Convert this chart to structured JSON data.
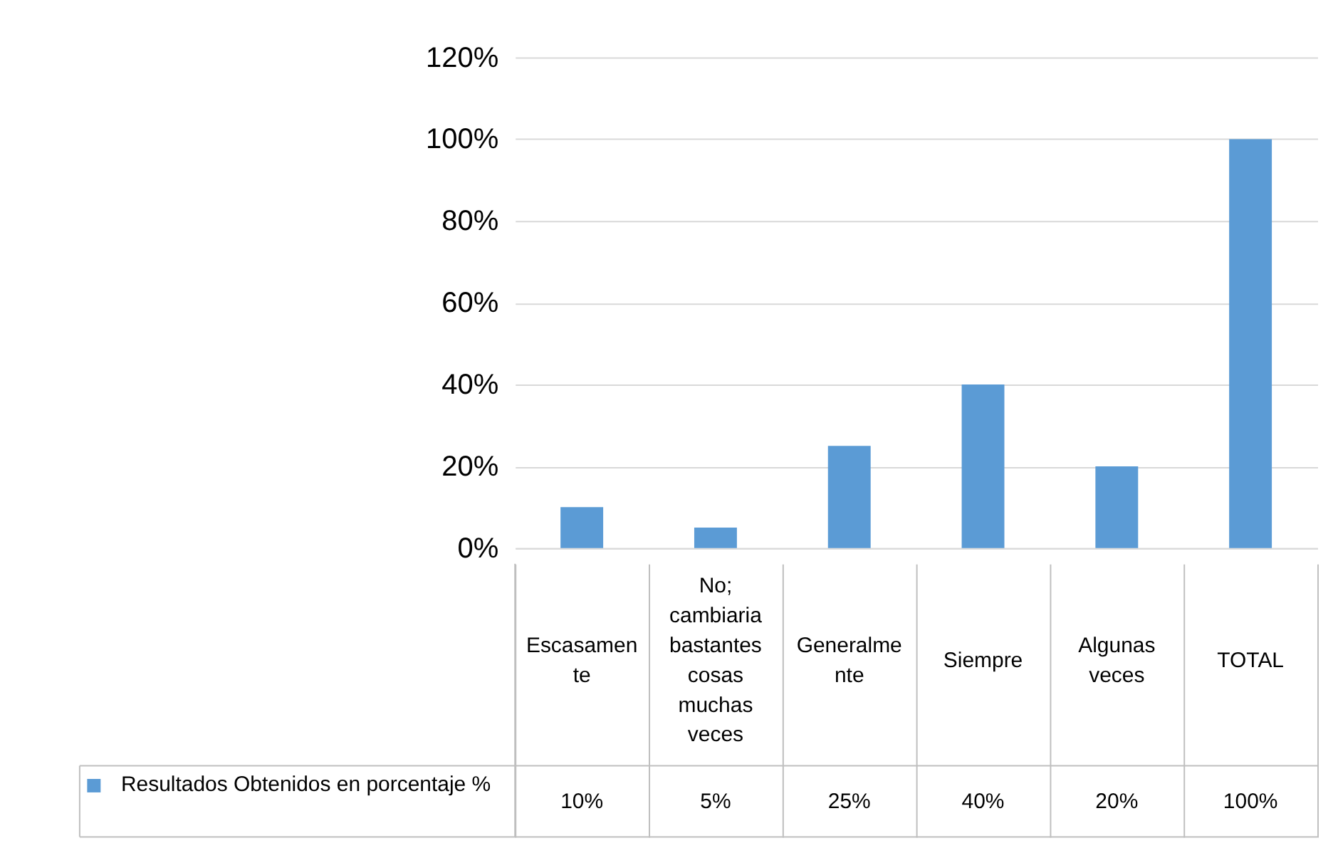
{
  "chart_data": {
    "type": "bar",
    "categories": [
      "Escasamente",
      "No; cambiaria bastantes cosas muchas veces",
      "Generalmente",
      "Siempre",
      "Algunas veces",
      "TOTAL"
    ],
    "series": [
      {
        "name": "Resultados Obtenidos en porcentaje %",
        "color": "#5b9bd5",
        "values": [
          10,
          5,
          25,
          40,
          20,
          100
        ],
        "value_labels": [
          "10%",
          "5%",
          "25%",
          "40%",
          "20%",
          "100%"
        ]
      }
    ],
    "ylim": [
      0,
      120
    ],
    "yticks": [
      {
        "value": 0,
        "label": "0%"
      },
      {
        "value": 20,
        "label": "20%"
      },
      {
        "value": 40,
        "label": "40%"
      },
      {
        "value": 60,
        "label": "60%"
      },
      {
        "value": 80,
        "label": "80%"
      },
      {
        "value": 100,
        "label": "100%"
      },
      {
        "value": 120,
        "label": "120%"
      }
    ],
    "grid": "y",
    "legend": "bottom"
  }
}
